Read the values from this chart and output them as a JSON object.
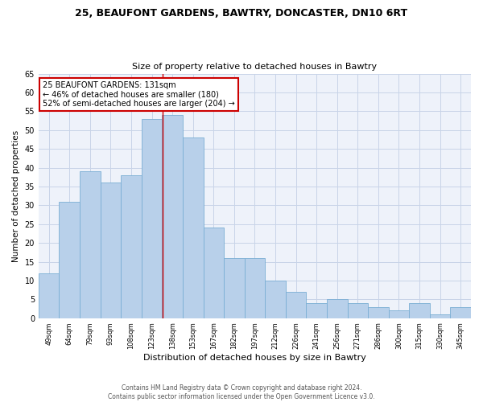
{
  "title1": "25, BEAUFONT GARDENS, BAWTRY, DONCASTER, DN10 6RT",
  "title2": "Size of property relative to detached houses in Bawtry",
  "xlabel": "Distribution of detached houses by size in Bawtry",
  "ylabel": "Number of detached properties",
  "categories": [
    "49sqm",
    "64sqm",
    "79sqm",
    "93sqm",
    "108sqm",
    "123sqm",
    "138sqm",
    "153sqm",
    "167sqm",
    "182sqm",
    "197sqm",
    "212sqm",
    "226sqm",
    "241sqm",
    "256sqm",
    "271sqm",
    "286sqm",
    "300sqm",
    "315sqm",
    "330sqm",
    "345sqm"
  ],
  "values": [
    12,
    31,
    39,
    36,
    38,
    53,
    54,
    48,
    24,
    16,
    16,
    10,
    7,
    4,
    5,
    4,
    3,
    2,
    4,
    1,
    3
  ],
  "bar_color": "#b8d0ea",
  "bar_edgecolor": "#7aaed4",
  "bar_linewidth": 0.6,
  "vline_x": 5.53,
  "vline_color": "#cc0000",
  "annotation_text": "25 BEAUFONT GARDENS: 131sqm\n← 46% of detached houses are smaller (180)\n52% of semi-detached houses are larger (204) →",
  "annotation_box_color": "#ffffff",
  "annotation_box_edgecolor": "#cc0000",
  "ylim": [
    0,
    65
  ],
  "yticks": [
    0,
    5,
    10,
    15,
    20,
    25,
    30,
    35,
    40,
    45,
    50,
    55,
    60,
    65
  ],
  "grid_color": "#c8d4e8",
  "background_color": "#eef2fa",
  "footer1": "Contains HM Land Registry data © Crown copyright and database right 2024.",
  "footer2": "Contains public sector information licensed under the Open Government Licence v3.0."
}
